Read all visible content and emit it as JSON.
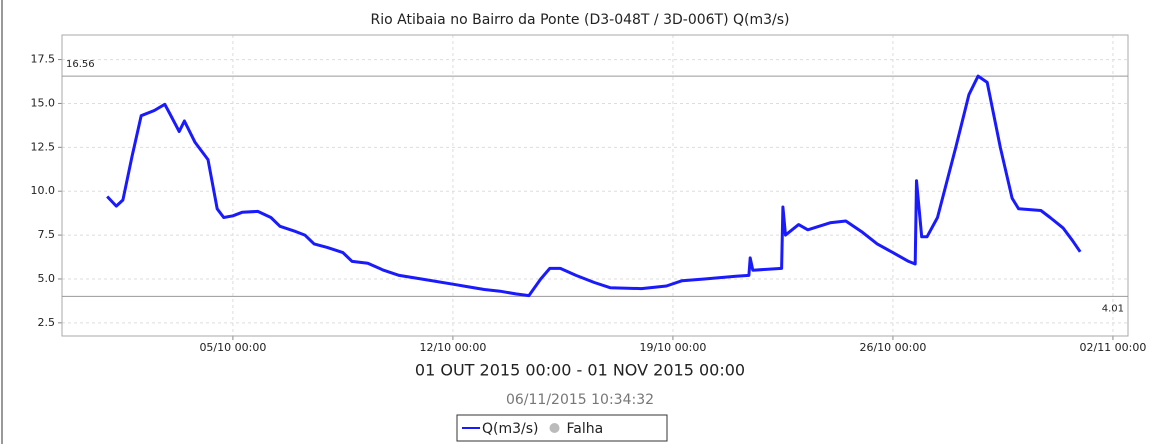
{
  "chart_data": {
    "type": "line",
    "title": "Rio Atibaia no Bairro da Ponte (D3-048T / 3D-006T) Q(m3/s)",
    "subtitle": "01 OUT 2015 00:00 - 01 NOV 2015 00:00",
    "timestamp": "06/11/2015 10:34:32",
    "series": [
      {
        "name": "Q(m3/s)",
        "color": "#1a1aff",
        "x": [
          "2015-10-01T00:00",
          "2015-10-01T07:00",
          "2015-10-01T12:00",
          "2015-10-01T19:00",
          "2015-10-02T02:00",
          "2015-10-02T12:00",
          "2015-10-02T20:00",
          "2015-10-03T00:00",
          "2015-10-03T07:00",
          "2015-10-03T11:00",
          "2015-10-03T19:00",
          "2015-10-04T05:00",
          "2015-10-04T12:00",
          "2015-10-04T17:00",
          "2015-10-05T00:00",
          "2015-10-05T07:00",
          "2015-10-05T19:00",
          "2015-10-06T05:00",
          "2015-10-06T12:00",
          "2015-10-07T00:00",
          "2015-10-07T07:00",
          "2015-10-07T14:00",
          "2015-10-08T00:00",
          "2015-10-08T12:00",
          "2015-10-08T19:00",
          "2015-10-09T07:00",
          "2015-10-09T19:00",
          "2015-10-10T07:00",
          "2015-10-11T00:00",
          "2015-10-12T00:00",
          "2015-10-12T12:00",
          "2015-10-13T00:00",
          "2015-10-13T12:00",
          "2015-10-14T00:00",
          "2015-10-14T10:00",
          "2015-10-14T19:00",
          "2015-10-15T02:00",
          "2015-10-15T10:00",
          "2015-10-15T22:00",
          "2015-10-16T12:00",
          "2015-10-17T00:00",
          "2015-10-18T00:00",
          "2015-10-18T19:00",
          "2015-10-19T07:00",
          "2015-10-20T00:00",
          "2015-10-21T00:00",
          "2015-10-21T10:00",
          "2015-10-21T11:00",
          "2015-10-21T13:00",
          "2015-10-22T11:00",
          "2015-10-22T12:00",
          "2015-10-22T14:00",
          "2015-10-23T00:00",
          "2015-10-23T07:00",
          "2015-10-24T00:00",
          "2015-10-24T12:00",
          "2015-10-25T00:00",
          "2015-10-25T12:00",
          "2015-10-26T00:00",
          "2015-10-26T12:00",
          "2015-10-26T17:00",
          "2015-10-26T18:00",
          "2015-10-26T22:00",
          "2015-10-27T02:00",
          "2015-10-27T10:00",
          "2015-10-28T00:00",
          "2015-10-28T10:00",
          "2015-10-28T17:00",
          "2015-10-29T00:00",
          "2015-10-29T10:00",
          "2015-10-29T19:00",
          "2015-10-30T00:00",
          "2015-10-30T17:00",
          "2015-10-31T00:00",
          "2015-10-31T10:00",
          "2015-10-31T17:00",
          "2015-10-31T23:00"
        ],
        "values": [
          9.7,
          9.15,
          9.5,
          12.0,
          14.3,
          14.6,
          14.95,
          14.4,
          13.4,
          14.0,
          12.8,
          11.8,
          9.0,
          8.5,
          8.6,
          8.8,
          8.85,
          8.5,
          8.0,
          7.7,
          7.5,
          7.0,
          6.8,
          6.5,
          6.0,
          5.9,
          5.5,
          5.2,
          5.0,
          4.7,
          4.55,
          4.4,
          4.3,
          4.15,
          4.05,
          5.0,
          5.6,
          5.6,
          5.2,
          4.8,
          4.5,
          4.45,
          4.6,
          4.9,
          5.0,
          5.15,
          5.2,
          6.2,
          5.5,
          5.6,
          9.1,
          7.5,
          8.1,
          7.8,
          8.2,
          8.3,
          7.7,
          7.0,
          6.5,
          6.0,
          5.85,
          10.6,
          7.4,
          7.4,
          8.5,
          12.5,
          15.5,
          16.56,
          16.2,
          12.5,
          9.6,
          9.0,
          8.9,
          8.5,
          7.9,
          7.2,
          6.55
        ]
      },
      {
        "name": "Falha",
        "color": "#bbbbbb",
        "x": [],
        "values": []
      }
    ],
    "reference_lines": [
      16.56,
      4.01
    ],
    "xlim": [
      "2015-09-29T13:30",
      "2015-11-02T11:30"
    ],
    "xticks": [
      {
        "value": "2015-10-05T00:00",
        "label": "05/10 00:00"
      },
      {
        "value": "2015-10-12T00:00",
        "label": "12/10 00:00"
      },
      {
        "value": "2015-10-19T00:00",
        "label": "19/10 00:00"
      },
      {
        "value": "2015-10-26T00:00",
        "label": "26/10 00:00"
      },
      {
        "value": "2015-11-02T00:00",
        "label": "02/11 00:00"
      }
    ],
    "ylim": [
      1.75,
      18.9
    ],
    "yticks": [
      {
        "value": 2.5,
        "label": "2.5"
      },
      {
        "value": 5,
        "label": "5.0"
      },
      {
        "value": 7.5,
        "label": "7.5"
      },
      {
        "value": 10,
        "label": "10.0"
      },
      {
        "value": 12.5,
        "label": "12.5"
      },
      {
        "value": 15,
        "label": "15.0"
      },
      {
        "value": 17.5,
        "label": "17.5"
      }
    ],
    "grid": true
  }
}
